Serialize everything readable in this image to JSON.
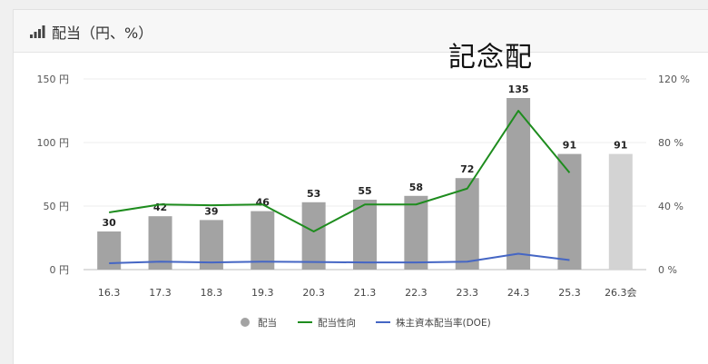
{
  "panel": {
    "title": "配当（円、%）",
    "icon": "signal-bars-icon"
  },
  "annotation": "記念配",
  "chart_data": {
    "type": "bar",
    "categories": [
      "16.3",
      "17.3",
      "18.3",
      "19.3",
      "20.3",
      "21.3",
      "22.3",
      "23.3",
      "24.3",
      "25.3",
      "26.3会"
    ],
    "series": [
      {
        "name": "配当",
        "kind": "bar",
        "axis": "left",
        "color": "#a3a3a3",
        "values": [
          30,
          42,
          39,
          46,
          53,
          55,
          58,
          72,
          135,
          91,
          91
        ],
        "forecast_color": "#d3d3d3"
      },
      {
        "name": "配当性向",
        "kind": "line",
        "axis": "right",
        "color": "#1e8c1e",
        "values": [
          36,
          41,
          40.5,
          41,
          24,
          41,
          41,
          51,
          100,
          61,
          null
        ]
      },
      {
        "name": "株主資本配当率(DOE)",
        "kind": "line",
        "axis": "right",
        "color": "#4566c4",
        "values": [
          4,
          5,
          4.5,
          5,
          4.8,
          4.5,
          4.5,
          5,
          10,
          6,
          null
        ]
      }
    ],
    "data_labels": [
      "30",
      "42",
      "39",
      "46",
      "53",
      "55",
      "58",
      "72",
      "135",
      "91",
      "91"
    ],
    "y_left": {
      "min": 0,
      "max": 150,
      "ticks": [
        "0 円",
        "50 円",
        "100 円",
        "150 円"
      ],
      "tick_values": [
        0,
        50,
        100,
        150
      ]
    },
    "y_right": {
      "min": 0,
      "max": 120,
      "ticks": [
        "0 %",
        "40 %",
        "80 %",
        "120 %"
      ],
      "tick_values": [
        0,
        40,
        80,
        120
      ]
    },
    "grid": true,
    "legend_position": "bottom-center"
  }
}
